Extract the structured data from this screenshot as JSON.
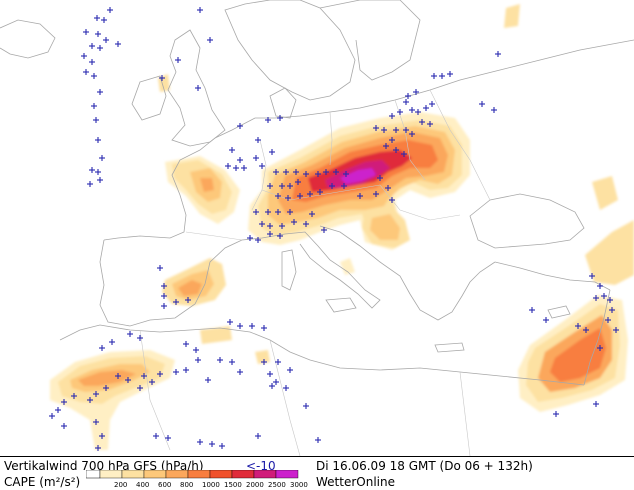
{
  "footer": {
    "line1": "Vertikalwind 700 hPa GFS (hPa/h)",
    "threshold": "<-10",
    "datetime": "Di 16.06.09 18 GMT (Do 06 + 132h)",
    "line2": "CAPE (m²/s²)",
    "brand": "WetterOnline"
  },
  "colorbar": {
    "labels": [
      "200",
      "400",
      "600",
      "800",
      "1000",
      "1500",
      "2000",
      "2500",
      "3000"
    ],
    "colors": [
      "#ffefc4",
      "#fde1a2",
      "#fdc87a",
      "#fba75c",
      "#f87e3f",
      "#f0512c",
      "#e02c3a",
      "#d01c7a",
      "#cc20cc"
    ]
  },
  "legend": {
    "marker_symbol": "+",
    "marker_meaning": "Vertikalwind 700 hPa < -10 hPa/h",
    "marker_color": "#2a2ab0"
  }
}
